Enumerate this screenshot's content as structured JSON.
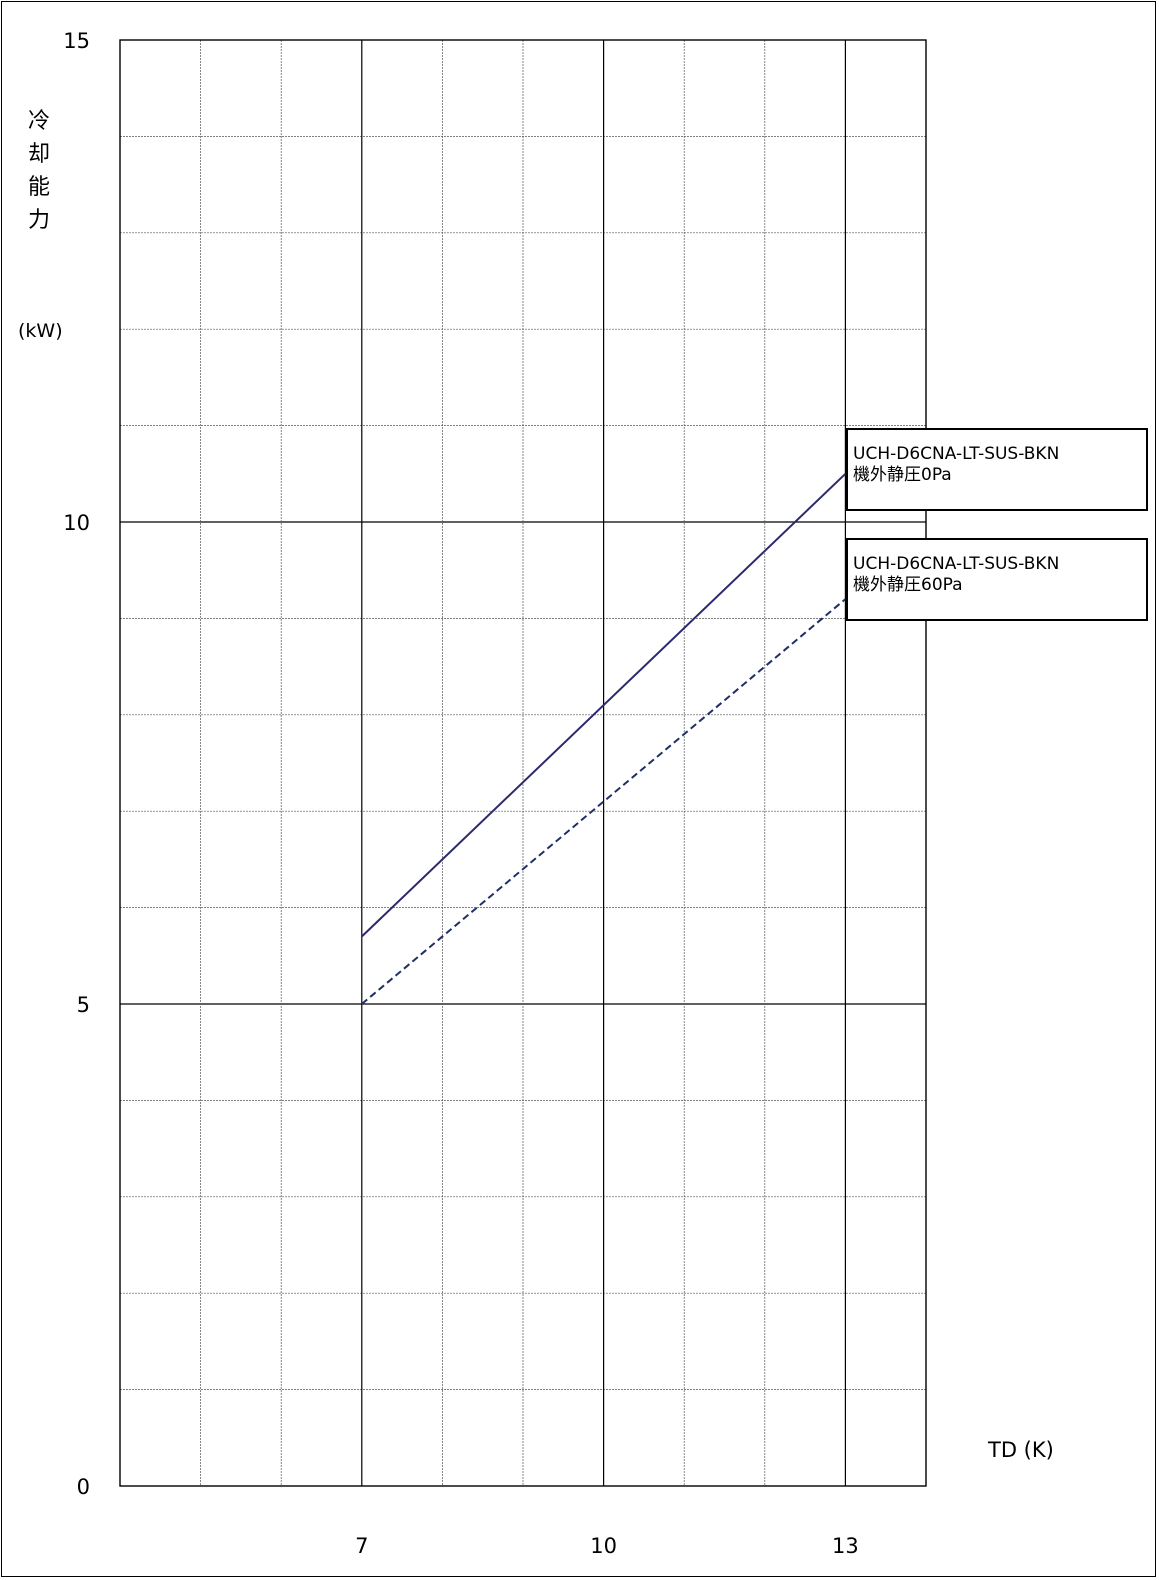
{
  "chart_data": {
    "type": "line",
    "ylabel": "冷却能力",
    "yunit": "(kW)",
    "xlabel": "TD (K)",
    "xlim": [
      4,
      14
    ],
    "ylim": [
      0,
      15
    ],
    "x_ticks": [
      7,
      10,
      13
    ],
    "y_ticks": [
      0,
      5,
      10,
      15
    ],
    "x_grid": [
      5,
      6,
      7,
      8,
      9,
      10,
      11,
      12,
      13
    ],
    "y_grid": [
      1,
      2,
      3,
      4,
      5,
      6,
      7,
      8,
      9,
      10,
      11,
      12,
      13,
      14
    ],
    "grid": true,
    "series": [
      {
        "name": "UCH-D6CNA-LT-SUS-BKN 機外静圧0Pa",
        "legend_line1": "UCH-D6CNA-LT-SUS-BKN",
        "legend_line2": "機外静圧0Pa",
        "style": "solid",
        "color": "#2a2a6e",
        "x": [
          7,
          13
        ],
        "y": [
          5.7,
          10.5
        ]
      },
      {
        "name": "UCH-D6CNA-LT-SUS-BKN 機外静圧60Pa",
        "legend_line1": "UCH-D6CNA-LT-SUS-BKN",
        "legend_line2": "機外静圧60Pa",
        "style": "dashed",
        "color": "#1f2f66",
        "x": [
          7,
          13
        ],
        "y": [
          5.0,
          9.2
        ]
      }
    ]
  }
}
